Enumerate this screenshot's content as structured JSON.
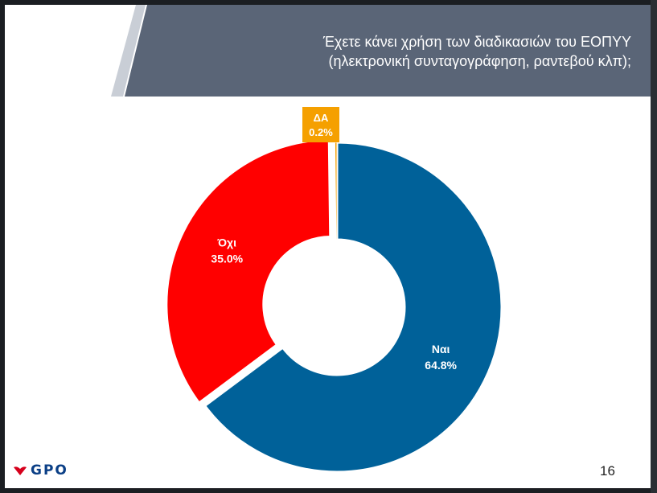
{
  "slide": {
    "title_line1": "Έχετε κάνει χρήση των διαδικασιών του ΕΟΠΥΥ",
    "title_line2": "(ηλεκτρονική συνταγογράφηση, ραντεβού κλπ);",
    "page_number": "16",
    "logo_text": "GPO"
  },
  "colors": {
    "title_band": "#5a6577",
    "accent_stripe": "#c9ced6",
    "nai": "#006199",
    "oxi": "#ff0000",
    "da": "#f5a000"
  },
  "chart_data": {
    "type": "pie",
    "donut": true,
    "title": "Έχετε κάνει χρήση των διαδικασιών του ΕΟΠΥΥ (ηλεκτρονική συνταγογράφηση, ραντεβού κλπ);",
    "series": [
      {
        "name": "Ναι",
        "value": 64.8,
        "label": "Ναι",
        "value_label": "64.8%",
        "color": "#006199"
      },
      {
        "name": "Όχι",
        "value": 35.0,
        "label": "Όχι",
        "value_label": "35.0%",
        "color": "#ff0000"
      },
      {
        "name": "ΔΑ",
        "value": 0.2,
        "label": "ΔΑ",
        "value_label": "0.2%",
        "color": "#f5a000"
      }
    ],
    "start": "top, clockwise",
    "legend": "none",
    "data_labels": "inside slices (ΔΑ in callout box above)"
  }
}
